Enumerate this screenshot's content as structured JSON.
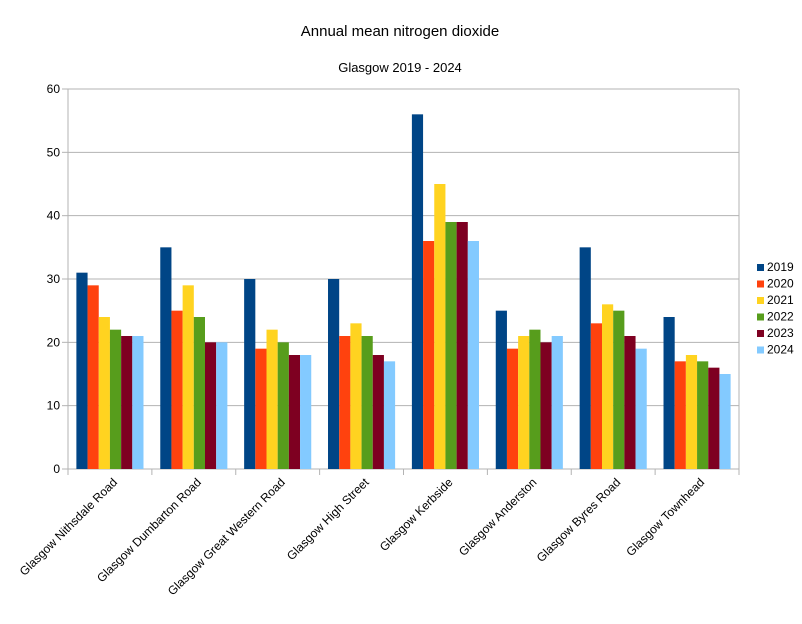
{
  "chart_data": {
    "type": "bar",
    "title": "Annual mean nitrogen dioxide",
    "subtitle": "Glasgow 2019 - 2024",
    "xlabel": "",
    "ylabel": "",
    "ylim": [
      0,
      60
    ],
    "yticks": [
      0,
      10,
      20,
      30,
      40,
      50,
      60
    ],
    "grid": true,
    "legend_position": "right",
    "categories": [
      "Glasgow Nithsdale Road",
      "Glasgow Dumbarton Road",
      "Glasgow Great Western Road",
      "Glasgow High Street",
      "Glasgow Kerbside",
      "Glasgow Anderston",
      "Glasgow Byres Road",
      "Glasgow Townhead"
    ],
    "series": [
      {
        "name": "2019",
        "color": "#004586",
        "values": [
          31,
          35,
          30,
          30,
          56,
          25,
          35,
          24
        ]
      },
      {
        "name": "2020",
        "color": "#ff420e",
        "values": [
          29,
          25,
          19,
          21,
          36,
          19,
          23,
          17
        ]
      },
      {
        "name": "2021",
        "color": "#ffd320",
        "values": [
          24,
          29,
          22,
          23,
          45,
          21,
          26,
          18
        ]
      },
      {
        "name": "2022",
        "color": "#579d1c",
        "values": [
          22,
          24,
          20,
          21,
          39,
          22,
          25,
          17
        ]
      },
      {
        "name": "2023",
        "color": "#7e0021",
        "values": [
          21,
          20,
          18,
          18,
          39,
          20,
          21,
          16
        ]
      },
      {
        "name": "2024",
        "color": "#83caff",
        "values": [
          21,
          20,
          18,
          17,
          36,
          21,
          19,
          15
        ]
      }
    ]
  }
}
